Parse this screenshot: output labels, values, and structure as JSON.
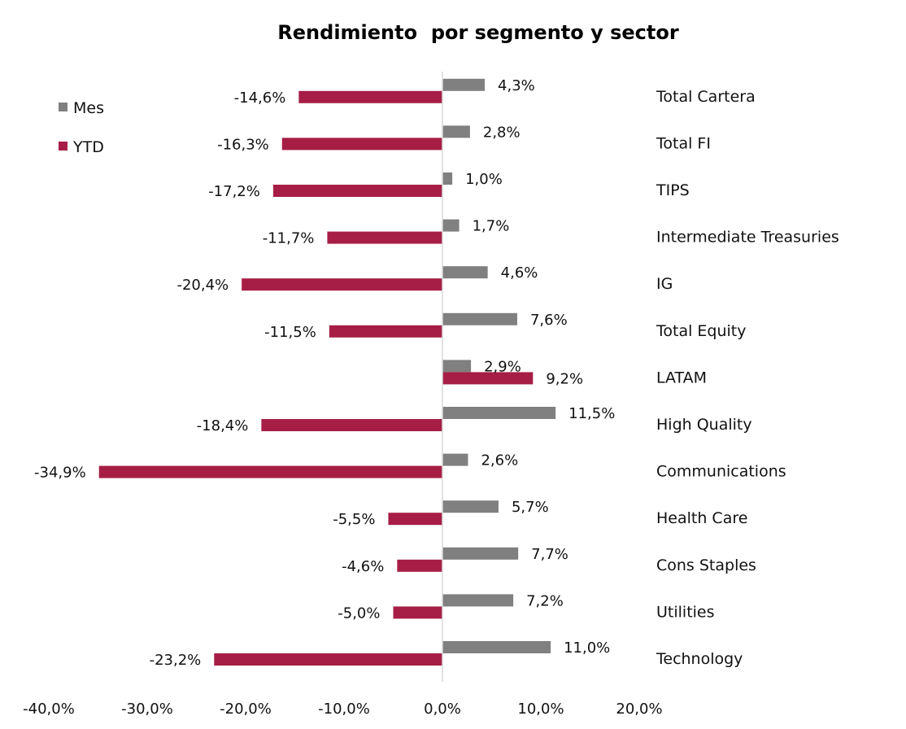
{
  "chart_data": {
    "type": "bar",
    "orientation": "horizontal",
    "title": "Rendimiento  por segmento y sector",
    "categories": [
      "Total Cartera",
      "Total FI",
      "TIPS",
      "Intermediate Treasuries",
      "IG",
      "Total Equity",
      "LATAM",
      "High Quality",
      "Communications",
      "Health Care",
      "Cons Staples",
      "Utilities",
      "Technology"
    ],
    "series": [
      {
        "name": "Mes",
        "color": "#808080",
        "values": [
          4.3,
          2.8,
          1.0,
          1.7,
          4.6,
          7.6,
          2.9,
          11.5,
          2.6,
          5.7,
          7.7,
          7.2,
          11.0
        ],
        "labels": [
          "4,3%",
          "2,8%",
          "1,0%",
          "1,7%",
          "4,6%",
          "7,6%",
          "2,9%",
          "11,5%",
          "2,6%",
          "5,7%",
          "7,7%",
          "7,2%",
          "11,0%"
        ]
      },
      {
        "name": "YTD",
        "color": "#A61E46",
        "values": [
          -14.6,
          -16.3,
          -17.2,
          -11.7,
          -20.4,
          -11.5,
          9.2,
          -18.4,
          -34.9,
          -5.5,
          -4.6,
          -5.0,
          -23.2
        ],
        "labels": [
          "-14,6%",
          "-16,3%",
          "-17,2%",
          "-11,7%",
          "-20,4%",
          "-11,5%",
          "9,2%",
          "-18,4%",
          "-34,9%",
          "-5,5%",
          "-4,6%",
          "-5,0%",
          "-23,2%"
        ]
      }
    ],
    "xlim": [
      -40,
      20
    ],
    "xticks": [
      -40,
      -30,
      -20,
      -10,
      0,
      10,
      20
    ],
    "xtick_labels": [
      "-40,0%",
      "-30,0%",
      "-20,0%",
      "-10,0%",
      "0,0%",
      "10,0%",
      "20,0%"
    ],
    "legend": "top-left",
    "grid": false
  }
}
